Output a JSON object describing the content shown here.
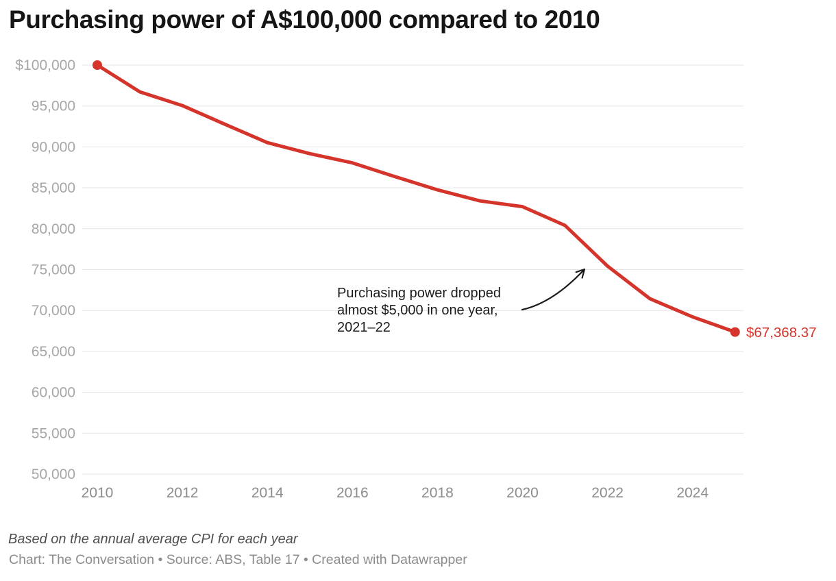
{
  "title": "Purchasing power of A$100,000 compared to 2010",
  "chart_data": {
    "type": "line",
    "title": "Purchasing power of A$100,000 compared to 2010",
    "xlabel": "",
    "ylabel": "",
    "x": [
      2010,
      2011,
      2012,
      2013,
      2014,
      2015,
      2016,
      2017,
      2018,
      2019,
      2020,
      2021,
      2022,
      2023,
      2024,
      2025
    ],
    "values": [
      100000,
      96722,
      95049,
      92776,
      90522,
      89175,
      88048,
      86364,
      84745,
      83402,
      82699,
      80400,
      75429,
      71429,
      69221,
      67368.37
    ],
    "series_name": "Purchasing power of A$100,000",
    "xlim": [
      2010,
      2025
    ],
    "ylim": [
      50000,
      100000
    ],
    "grid": "horizontal",
    "legend_position": "none",
    "y_tick_labels": [
      "$100,000",
      "95,000",
      "90,000",
      "85,000",
      "80,000",
      "75,000",
      "70,000",
      "65,000",
      "60,000",
      "55,000",
      "50,000"
    ],
    "y_tick_values": [
      100000,
      95000,
      90000,
      85000,
      80000,
      75000,
      70000,
      65000,
      60000,
      55000,
      50000
    ],
    "x_tick_labels": [
      "2010",
      "2012",
      "2014",
      "2016",
      "2018",
      "2020",
      "2022",
      "2024"
    ],
    "x_tick_values": [
      2010,
      2012,
      2014,
      2016,
      2018,
      2020,
      2022,
      2024
    ],
    "end_label": "$67,368.37",
    "annotation": {
      "lines": [
        "Purchasing power dropped",
        "almost $5,000 in one year,",
        "2021–22"
      ]
    }
  },
  "footer": {
    "note": "Based on the annual average CPI for each year",
    "byline": "Chart: The Conversation • Source: ABS, Table 17 • Created with Datawrapper"
  },
  "colors": {
    "series": "#d5342b",
    "gridline": "#e4e4e4",
    "y_tick_text": "#a6a6a6",
    "x_tick_text": "#8c8c8c",
    "annotation_arrow": "#1a1a1a"
  }
}
